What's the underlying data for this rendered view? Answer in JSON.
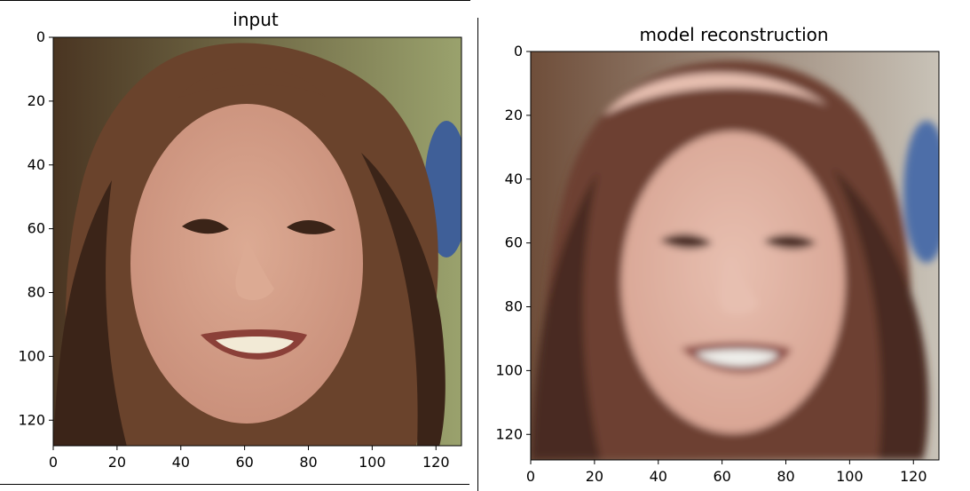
{
  "figure": {
    "panels": [
      {
        "title": "input",
        "image_name": "input-face-image",
        "x_ticks": [
          0,
          20,
          40,
          60,
          80,
          100,
          120
        ],
        "y_ticks": [
          0,
          20,
          40,
          60,
          80,
          100,
          120
        ],
        "extent": 128,
        "colors": {
          "background_left": "#4a3522",
          "background_right": "#9aa26d",
          "hair": "#6a432c",
          "hair_dark": "#3b2418",
          "skin": "#c98f7a",
          "skin_light": "#dcaa93",
          "mouth": "#8b4038",
          "teeth": "#f2ead6",
          "blue_patch": "#3f5f98"
        }
      },
      {
        "title": "model reconstruction",
        "image_name": "reconstruction-face-image",
        "x_ticks": [
          0,
          20,
          40,
          60,
          80,
          100,
          120
        ],
        "y_ticks": [
          0,
          20,
          40,
          60,
          80,
          100,
          120
        ],
        "extent": 128,
        "colors": {
          "background_left": "#6f4e3a",
          "background_right": "#c8c2b7",
          "hair": "#6d3f32",
          "hair_dark": "#4a2a22",
          "skin": "#d8a493",
          "skin_light": "#e7bfb0",
          "mouth": "#8c4a43",
          "teeth": "#eeeeea",
          "blue_patch": "#4d6ea8"
        }
      }
    ]
  }
}
